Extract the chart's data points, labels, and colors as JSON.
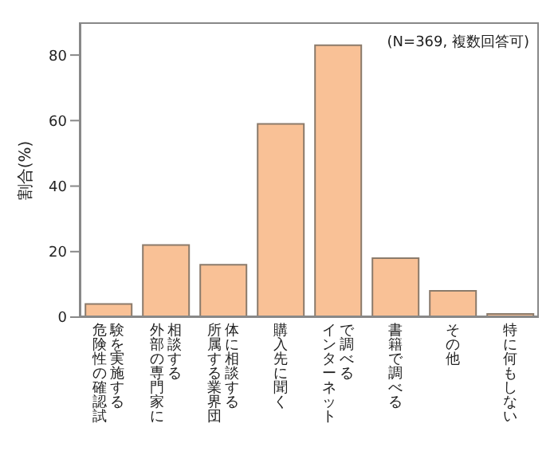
{
  "chart_data": {
    "type": "bar",
    "ylabel": "割合(%)",
    "annotations": [
      "(N=369, 複数回答可)"
    ],
    "categories": [
      "危険性の確認試験を実施する",
      "外部の専門家に相談する",
      "所属する業界団体に相談する",
      "購入先に聞く",
      "インターネットで調べる",
      "書籍で調べる",
      "その他",
      "特に何もしない"
    ],
    "values": [
      4,
      22,
      16,
      59,
      83,
      18,
      8,
      1
    ],
    "color": "#f9c196",
    "ylim": [
      0,
      90
    ],
    "yticks": [
      0,
      20,
      40,
      60,
      80
    ],
    "grid": false,
    "legend": false
  }
}
